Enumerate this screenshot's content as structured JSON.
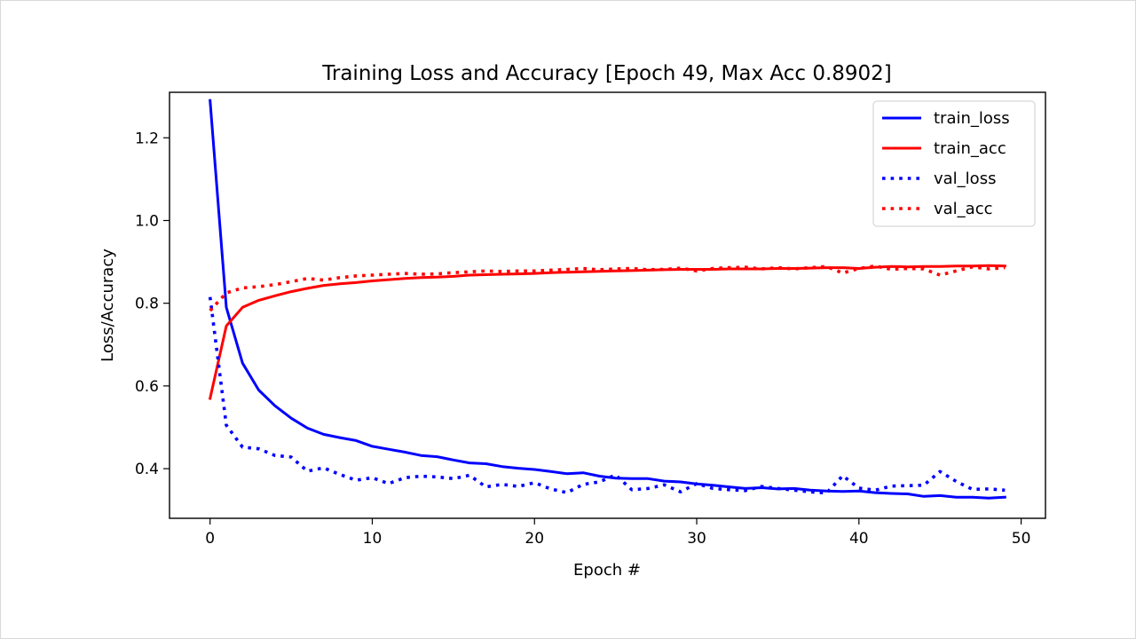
{
  "chart_data": {
    "type": "line",
    "title": "Training Loss and Accuracy [Epoch 49, Max Acc 0.8902]",
    "xlabel": "Epoch #",
    "ylabel": "Loss/Accuracy",
    "xlim": [
      -2.5,
      51.5
    ],
    "ylim": [
      0.28,
      1.31
    ],
    "xticks": [
      0,
      10,
      20,
      30,
      40,
      50
    ],
    "xtick_labels": [
      "0",
      "10",
      "20",
      "30",
      "40",
      "50"
    ],
    "yticks": [
      0.4,
      0.6,
      0.8,
      1.0,
      1.2
    ],
    "ytick_labels": [
      "0.4",
      "0.6",
      "0.8",
      "1.0",
      "1.2"
    ],
    "grid": false,
    "legend": "top-right",
    "x": [
      0,
      1,
      2,
      3,
      4,
      5,
      6,
      7,
      8,
      9,
      10,
      11,
      12,
      13,
      14,
      15,
      16,
      17,
      18,
      19,
      20,
      21,
      22,
      23,
      24,
      25,
      26,
      27,
      28,
      29,
      30,
      31,
      32,
      33,
      34,
      35,
      36,
      37,
      38,
      39,
      40,
      41,
      42,
      43,
      44,
      45,
      46,
      47,
      48,
      49
    ],
    "series": [
      {
        "name": "train_loss",
        "color": "#0000ff",
        "style": "solid",
        "values": [
          1.29,
          0.79,
          0.655,
          0.59,
          0.552,
          0.522,
          0.498,
          0.483,
          0.475,
          0.468,
          0.454,
          0.447,
          0.44,
          0.432,
          0.429,
          0.421,
          0.414,
          0.412,
          0.405,
          0.401,
          0.398,
          0.393,
          0.388,
          0.39,
          0.382,
          0.377,
          0.376,
          0.376,
          0.37,
          0.368,
          0.363,
          0.36,
          0.356,
          0.352,
          0.354,
          0.351,
          0.352,
          0.348,
          0.346,
          0.345,
          0.346,
          0.342,
          0.34,
          0.339,
          0.333,
          0.335,
          0.331,
          0.331,
          0.329,
          0.331
        ]
      },
      {
        "name": "train_acc",
        "color": "#ff0000",
        "style": "solid",
        "values": [
          0.57,
          0.745,
          0.79,
          0.807,
          0.818,
          0.828,
          0.836,
          0.843,
          0.847,
          0.85,
          0.854,
          0.857,
          0.86,
          0.862,
          0.863,
          0.865,
          0.868,
          0.869,
          0.87,
          0.871,
          0.872,
          0.874,
          0.875,
          0.876,
          0.877,
          0.878,
          0.879,
          0.88,
          0.881,
          0.882,
          0.882,
          0.882,
          0.883,
          0.883,
          0.883,
          0.884,
          0.884,
          0.885,
          0.886,
          0.886,
          0.884,
          0.887,
          0.889,
          0.888,
          0.889,
          0.889,
          0.89,
          0.89,
          0.891,
          0.89
        ]
      },
      {
        "name": "val_loss",
        "color": "#0000ff",
        "style": "dotted",
        "values": [
          0.815,
          0.505,
          0.452,
          0.448,
          0.432,
          0.428,
          0.394,
          0.402,
          0.386,
          0.372,
          0.378,
          0.364,
          0.378,
          0.382,
          0.38,
          0.376,
          0.384,
          0.356,
          0.362,
          0.357,
          0.366,
          0.351,
          0.342,
          0.362,
          0.368,
          0.385,
          0.349,
          0.352,
          0.361,
          0.344,
          0.364,
          0.352,
          0.349,
          0.347,
          0.357,
          0.352,
          0.348,
          0.344,
          0.341,
          0.383,
          0.353,
          0.348,
          0.358,
          0.359,
          0.36,
          0.393,
          0.369,
          0.35,
          0.351,
          0.348
        ]
      },
      {
        "name": "val_acc",
        "color": "#ff0000",
        "style": "dotted",
        "values": [
          0.782,
          0.825,
          0.837,
          0.84,
          0.845,
          0.852,
          0.86,
          0.856,
          0.862,
          0.866,
          0.868,
          0.87,
          0.872,
          0.87,
          0.871,
          0.874,
          0.876,
          0.878,
          0.877,
          0.878,
          0.878,
          0.88,
          0.882,
          0.884,
          0.881,
          0.883,
          0.884,
          0.881,
          0.882,
          0.885,
          0.878,
          0.884,
          0.886,
          0.887,
          0.883,
          0.886,
          0.883,
          0.886,
          0.889,
          0.873,
          0.884,
          0.89,
          0.882,
          0.884,
          0.883,
          0.868,
          0.878,
          0.888,
          0.883,
          0.886
        ]
      }
    ]
  }
}
